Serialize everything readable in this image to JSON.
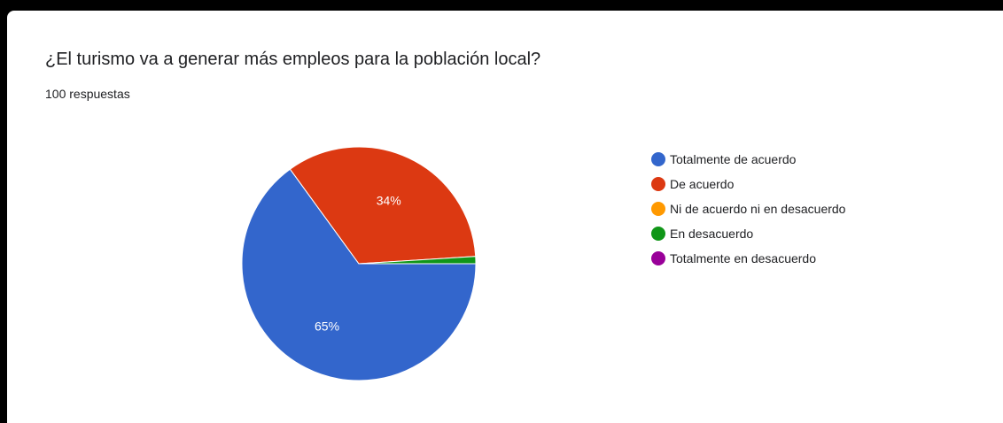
{
  "question": {
    "title": "¿El turismo va a generar más empleos para la población local?",
    "responses": "100 respuestas"
  },
  "chart_data": {
    "type": "pie",
    "title": "¿El turismo va a generar más empleos para la población local?",
    "subtitle": "100 respuestas",
    "categories": [
      "Totalmente de acuerdo",
      "De acuerdo",
      "Ni de acuerdo ni en desacuerdo",
      "En desacuerdo",
      "Totalmente en desacuerdo"
    ],
    "values": [
      65,
      34,
      0,
      1,
      0
    ],
    "labels": [
      "65%",
      "34%",
      "",
      "",
      ""
    ],
    "colors": [
      "#3366cc",
      "#dc3912",
      "#ff9900",
      "#109618",
      "#990099"
    ],
    "legend": "right"
  }
}
